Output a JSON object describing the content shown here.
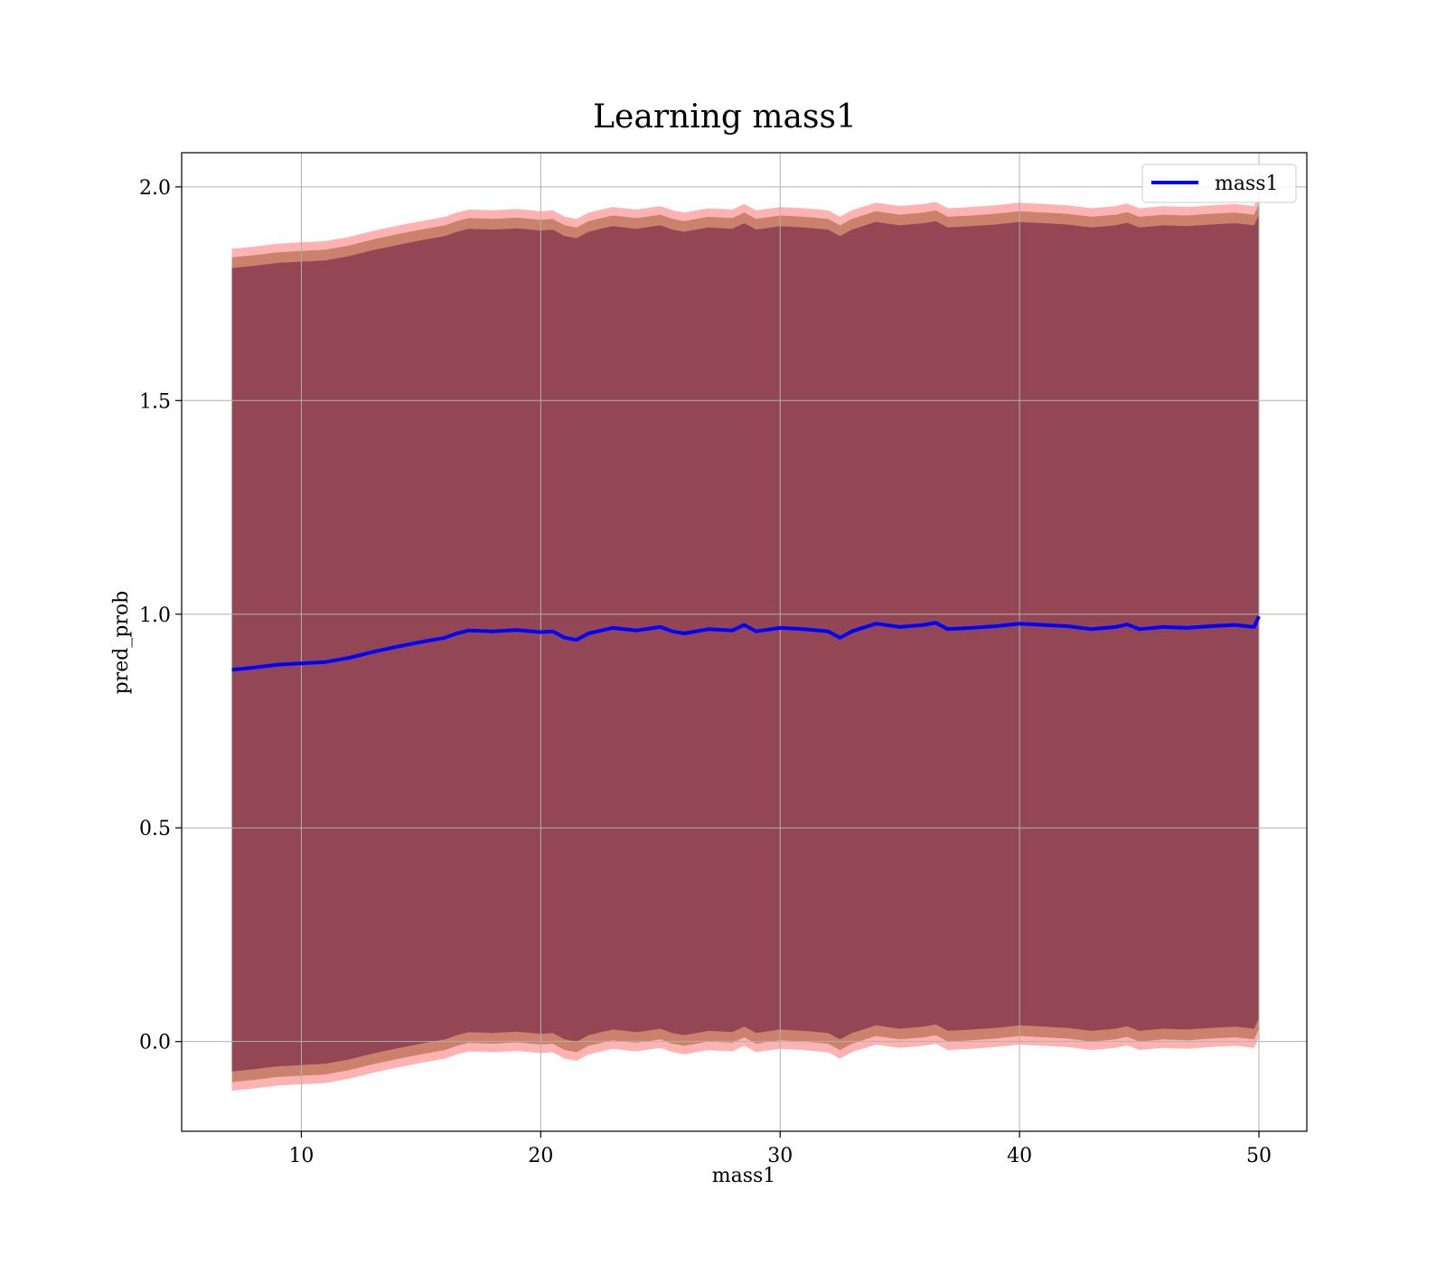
{
  "chart_data": {
    "type": "line",
    "title": "Learning mass1",
    "xlabel": "mass1",
    "ylabel": "pred_prob",
    "xlim": [
      5,
      52
    ],
    "ylim": [
      -0.21,
      2.08
    ],
    "xticks": [
      10,
      20,
      30,
      40,
      50
    ],
    "yticks": [
      0.0,
      0.5,
      1.0,
      1.5,
      2.0
    ],
    "xtick_labels": [
      "10",
      "20",
      "30",
      "40",
      "50"
    ],
    "ytick_labels": [
      "0.0",
      "0.5",
      "1.0",
      "1.5",
      "2.0"
    ],
    "grid": true,
    "legend_position": "top-right",
    "series": [
      {
        "name": "mass1",
        "color": "#0000ff",
        "x": [
          7.1,
          8,
          9,
          10,
          11,
          12,
          13,
          14,
          15,
          16,
          16.5,
          17,
          18,
          19,
          20,
          20.5,
          21,
          21.5,
          22,
          23,
          24,
          25,
          25.5,
          26,
          27,
          28,
          28.5,
          29,
          30,
          31,
          32,
          32.5,
          33,
          34,
          35,
          36,
          36.5,
          37,
          38,
          39,
          40,
          41,
          42,
          43,
          44,
          44.5,
          45,
          46,
          47,
          48,
          49,
          49.8,
          50
        ],
        "y": [
          0.87,
          0.875,
          0.882,
          0.885,
          0.888,
          0.898,
          0.912,
          0.924,
          0.935,
          0.945,
          0.955,
          0.962,
          0.96,
          0.963,
          0.958,
          0.96,
          0.945,
          0.94,
          0.955,
          0.968,
          0.962,
          0.97,
          0.96,
          0.955,
          0.965,
          0.962,
          0.975,
          0.96,
          0.968,
          0.965,
          0.96,
          0.945,
          0.96,
          0.978,
          0.97,
          0.975,
          0.98,
          0.965,
          0.968,
          0.972,
          0.978,
          0.975,
          0.972,
          0.965,
          0.97,
          0.976,
          0.965,
          0.97,
          0.968,
          0.972,
          0.975,
          0.97,
          0.995
        ]
      }
    ],
    "bands": [
      {
        "color": "#ff0000",
        "opacity": 0.3,
        "upper_offset": 0.985,
        "lower_offset": -0.985
      },
      {
        "color": "#8b4513",
        "opacity": 0.45,
        "upper_offset": 0.965,
        "lower_offset": -0.965
      },
      {
        "color": "#7b2f4a",
        "opacity": 0.7,
        "upper_offset": 0.94,
        "lower_offset": -0.94
      }
    ]
  }
}
